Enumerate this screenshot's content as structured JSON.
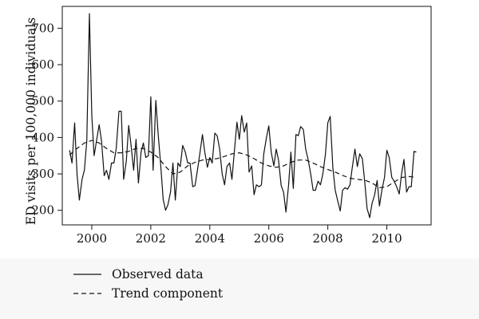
{
  "chart_data": {
    "type": "line",
    "title": "",
    "xlabel": "",
    "ylabel": "ED visits per 100,000 individuals",
    "xlim": [
      1999.0,
      2011.5
    ],
    "ylim": [
      160,
      760
    ],
    "x_ticks": [
      2000,
      2002,
      2004,
      2006,
      2008,
      2010
    ],
    "x_tick_labels": [
      "2000",
      "2002",
      "2004",
      "2006",
      "2008",
      "2010"
    ],
    "y_ticks": [
      200,
      300,
      400,
      500,
      600,
      700
    ],
    "y_tick_labels": [
      "200",
      "300",
      "400",
      "500",
      "600",
      "700"
    ],
    "grid": false,
    "legend_position": "bottom",
    "series": [
      {
        "name": "Observed data",
        "style": "solid",
        "points": [
          [
            1999.25,
            365
          ],
          [
            1999.33,
            330
          ],
          [
            1999.42,
            440
          ],
          [
            1999.5,
            300
          ],
          [
            1999.58,
            228
          ],
          [
            1999.67,
            285
          ],
          [
            1999.75,
            310
          ],
          [
            1999.83,
            390
          ],
          [
            1999.92,
            740
          ],
          [
            2000.0,
            460
          ],
          [
            2000.08,
            350
          ],
          [
            2000.17,
            395
          ],
          [
            2000.25,
            435
          ],
          [
            2000.33,
            390
          ],
          [
            2000.42,
            295
          ],
          [
            2000.5,
            310
          ],
          [
            2000.58,
            285
          ],
          [
            2000.67,
            330
          ],
          [
            2000.75,
            330
          ],
          [
            2000.83,
            370
          ],
          [
            2000.92,
            472
          ],
          [
            2001.0,
            472
          ],
          [
            2001.08,
            285
          ],
          [
            2001.17,
            335
          ],
          [
            2001.25,
            433
          ],
          [
            2001.33,
            380
          ],
          [
            2001.42,
            310
          ],
          [
            2001.5,
            395
          ],
          [
            2001.58,
            275
          ],
          [
            2001.67,
            360
          ],
          [
            2001.75,
            385
          ],
          [
            2001.83,
            345
          ],
          [
            2001.92,
            350
          ],
          [
            2002.0,
            512
          ],
          [
            2002.08,
            310
          ],
          [
            2002.17,
            502
          ],
          [
            2002.25,
            410
          ],
          [
            2002.33,
            330
          ],
          [
            2002.42,
            230
          ],
          [
            2002.5,
            200
          ],
          [
            2002.58,
            215
          ],
          [
            2002.67,
            250
          ],
          [
            2002.75,
            330
          ],
          [
            2002.83,
            228
          ],
          [
            2002.92,
            330
          ],
          [
            2003.0,
            320
          ],
          [
            2003.08,
            378
          ],
          [
            2003.17,
            360
          ],
          [
            2003.25,
            330
          ],
          [
            2003.33,
            330
          ],
          [
            2003.42,
            265
          ],
          [
            2003.5,
            268
          ],
          [
            2003.58,
            310
          ],
          [
            2003.67,
            360
          ],
          [
            2003.75,
            408
          ],
          [
            2003.83,
            360
          ],
          [
            2003.92,
            318
          ],
          [
            2004.0,
            345
          ],
          [
            2004.08,
            330
          ],
          [
            2004.17,
            412
          ],
          [
            2004.25,
            405
          ],
          [
            2004.33,
            370
          ],
          [
            2004.42,
            300
          ],
          [
            2004.5,
            270
          ],
          [
            2004.58,
            320
          ],
          [
            2004.67,
            330
          ],
          [
            2004.75,
            285
          ],
          [
            2004.83,
            360
          ],
          [
            2004.92,
            442
          ],
          [
            2005.0,
            395
          ],
          [
            2005.08,
            460
          ],
          [
            2005.17,
            415
          ],
          [
            2005.25,
            440
          ],
          [
            2005.33,
            305
          ],
          [
            2005.42,
            322
          ],
          [
            2005.5,
            243
          ],
          [
            2005.58,
            270
          ],
          [
            2005.67,
            265
          ],
          [
            2005.75,
            270
          ],
          [
            2005.83,
            355
          ],
          [
            2005.92,
            400
          ],
          [
            2006.0,
            432
          ],
          [
            2006.08,
            360
          ],
          [
            2006.17,
            322
          ],
          [
            2006.25,
            368
          ],
          [
            2006.33,
            338
          ],
          [
            2006.42,
            268
          ],
          [
            2006.5,
            250
          ],
          [
            2006.58,
            195
          ],
          [
            2006.67,
            270
          ],
          [
            2006.75,
            360
          ],
          [
            2006.83,
            260
          ],
          [
            2006.92,
            408
          ],
          [
            2007.0,
            405
          ],
          [
            2007.08,
            430
          ],
          [
            2007.17,
            422
          ],
          [
            2007.25,
            368
          ],
          [
            2007.33,
            340
          ],
          [
            2007.42,
            300
          ],
          [
            2007.5,
            255
          ],
          [
            2007.58,
            255
          ],
          [
            2007.67,
            280
          ],
          [
            2007.75,
            270
          ],
          [
            2007.83,
            300
          ],
          [
            2007.92,
            355
          ],
          [
            2008.0,
            440
          ],
          [
            2008.08,
            458
          ],
          [
            2008.17,
            318
          ],
          [
            2008.25,
            255
          ],
          [
            2008.33,
            228
          ],
          [
            2008.42,
            198
          ],
          [
            2008.5,
            255
          ],
          [
            2008.58,
            262
          ],
          [
            2008.67,
            258
          ],
          [
            2008.75,
            270
          ],
          [
            2008.83,
            318
          ],
          [
            2008.92,
            368
          ],
          [
            2009.0,
            320
          ],
          [
            2009.08,
            355
          ],
          [
            2009.17,
            342
          ],
          [
            2009.25,
            280
          ],
          [
            2009.33,
            205
          ],
          [
            2009.42,
            180
          ],
          [
            2009.5,
            220
          ],
          [
            2009.58,
            240
          ],
          [
            2009.67,
            282
          ],
          [
            2009.75,
            212
          ],
          [
            2009.83,
            255
          ],
          [
            2009.92,
            290
          ],
          [
            2010.0,
            365
          ],
          [
            2010.08,
            345
          ],
          [
            2010.17,
            290
          ],
          [
            2010.25,
            280
          ],
          [
            2010.33,
            265
          ],
          [
            2010.42,
            245
          ],
          [
            2010.5,
            300
          ],
          [
            2010.58,
            340
          ],
          [
            2010.67,
            250
          ],
          [
            2010.75,
            265
          ],
          [
            2010.83,
            265
          ],
          [
            2010.92,
            362
          ],
          [
            2011.0,
            360
          ]
        ]
      },
      {
        "name": "Trend component",
        "style": "dashed",
        "points": [
          [
            1999.25,
            352
          ],
          [
            1999.5,
            370
          ],
          [
            1999.75,
            385
          ],
          [
            2000.0,
            392
          ],
          [
            2000.25,
            385
          ],
          [
            2000.5,
            370
          ],
          [
            2000.75,
            358
          ],
          [
            2001.0,
            358
          ],
          [
            2001.25,
            362
          ],
          [
            2001.5,
            370
          ],
          [
            2001.75,
            370
          ],
          [
            2002.0,
            360
          ],
          [
            2002.25,
            345
          ],
          [
            2002.5,
            320
          ],
          [
            2002.75,
            300
          ],
          [
            2003.0,
            305
          ],
          [
            2003.25,
            322
          ],
          [
            2003.5,
            332
          ],
          [
            2003.75,
            338
          ],
          [
            2004.0,
            340
          ],
          [
            2004.25,
            342
          ],
          [
            2004.5,
            348
          ],
          [
            2004.75,
            355
          ],
          [
            2005.0,
            358
          ],
          [
            2005.25,
            352
          ],
          [
            2005.5,
            342
          ],
          [
            2005.75,
            330
          ],
          [
            2006.0,
            322
          ],
          [
            2006.25,
            318
          ],
          [
            2006.5,
            322
          ],
          [
            2006.75,
            332
          ],
          [
            2007.0,
            338
          ],
          [
            2007.25,
            338
          ],
          [
            2007.5,
            330
          ],
          [
            2007.75,
            320
          ],
          [
            2008.0,
            312
          ],
          [
            2008.25,
            305
          ],
          [
            2008.5,
            296
          ],
          [
            2008.75,
            288
          ],
          [
            2009.0,
            285
          ],
          [
            2009.25,
            283
          ],
          [
            2009.5,
            275
          ],
          [
            2009.75,
            262
          ],
          [
            2010.0,
            265
          ],
          [
            2010.25,
            278
          ],
          [
            2010.5,
            290
          ],
          [
            2010.75,
            293
          ],
          [
            2011.0,
            290
          ]
        ]
      }
    ]
  }
}
